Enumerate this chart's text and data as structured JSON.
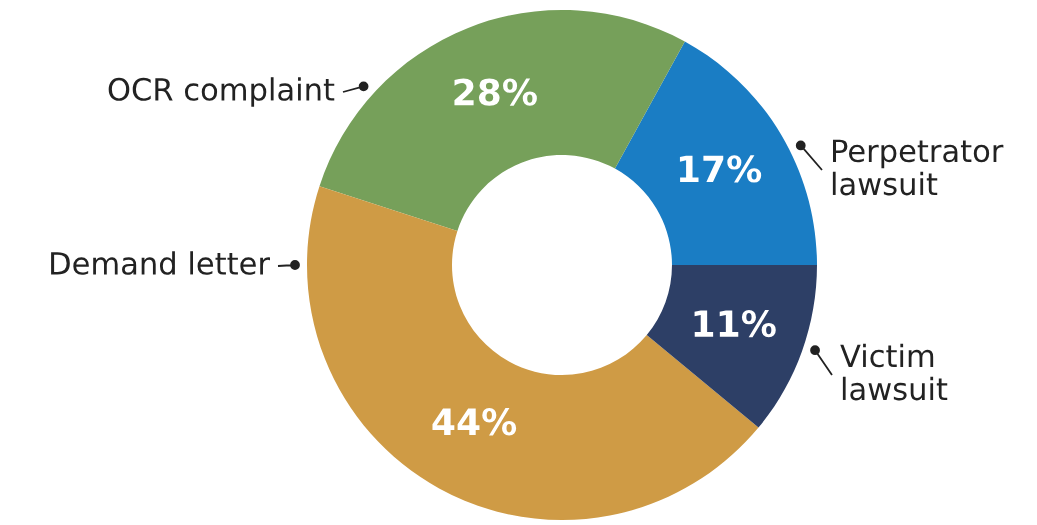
{
  "chart_data": {
    "type": "donut",
    "categories": [
      "Perpetrator\nlawsuit",
      "OCR complaint",
      "Demand letter",
      "Victim\nlawsuit"
    ],
    "values": [
      17,
      28,
      44,
      11
    ],
    "colors": [
      "#1a7dc4",
      "#76a05a",
      "#cf9b45",
      "#2d3f66"
    ],
    "value_labels": [
      "17%",
      "28%",
      "44%",
      "11%"
    ],
    "legend": false
  }
}
